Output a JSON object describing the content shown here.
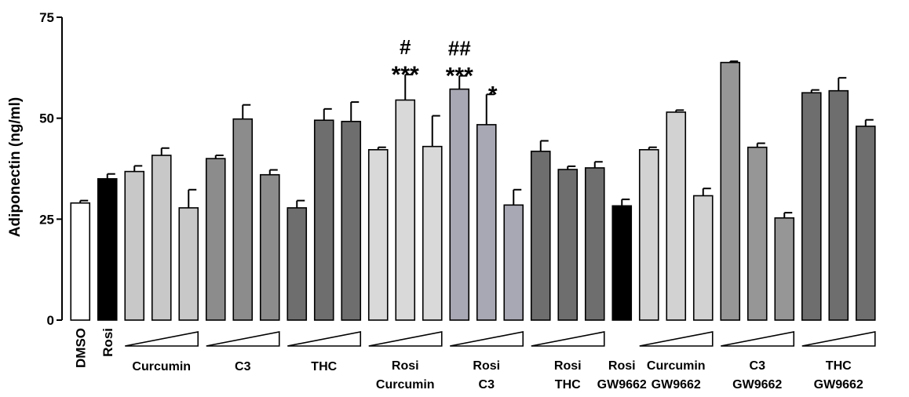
{
  "chart_data": {
    "type": "bar",
    "ylabel": "Adiponectin (ng/ml)",
    "xlabel": "",
    "title": "",
    "ylim": [
      0,
      75
    ],
    "yticks": [
      0,
      25,
      50,
      75
    ],
    "grid": false,
    "bars": [
      {
        "value": 29.0,
        "error": 0.6,
        "color": "#ffffff"
      },
      {
        "value": 35.0,
        "error": 1.2,
        "color": "#000000"
      },
      {
        "value": 36.8,
        "error": 1.4,
        "color": "#c8c8c8"
      },
      {
        "value": 40.8,
        "error": 1.8,
        "color": "#c8c8c8"
      },
      {
        "value": 27.8,
        "error": 4.5,
        "color": "#c8c8c8"
      },
      {
        "value": 40.0,
        "error": 0.8,
        "color": "#8c8c8c"
      },
      {
        "value": 49.8,
        "error": 3.5,
        "color": "#8c8c8c"
      },
      {
        "value": 36.0,
        "error": 1.2,
        "color": "#8c8c8c"
      },
      {
        "value": 27.8,
        "error": 1.8,
        "color": "#6e6e6e"
      },
      {
        "value": 49.5,
        "error": 2.8,
        "color": "#6e6e6e"
      },
      {
        "value": 49.2,
        "error": 4.8,
        "color": "#6e6e6e"
      },
      {
        "value": 42.2,
        "error": 0.6,
        "color": "#d9d9d9"
      },
      {
        "value": 54.5,
        "error": 6.3,
        "color": "#d9d9d9"
      },
      {
        "value": 43.0,
        "error": 7.6,
        "color": "#d9d9d9"
      },
      {
        "value": 57.2,
        "error": 3.3,
        "color": "#a8a8b4"
      },
      {
        "value": 48.4,
        "error": 7.5,
        "color": "#a8a8b4"
      },
      {
        "value": 28.5,
        "error": 3.8,
        "color": "#a8a8b4"
      },
      {
        "value": 41.8,
        "error": 2.6,
        "color": "#6e6e6e"
      },
      {
        "value": 37.3,
        "error": 0.8,
        "color": "#6e6e6e"
      },
      {
        "value": 37.7,
        "error": 1.5,
        "color": "#6e6e6e"
      },
      {
        "value": 28.3,
        "error": 1.6,
        "color": "#000000"
      },
      {
        "value": 42.2,
        "error": 0.6,
        "color": "#d2d2d2"
      },
      {
        "value": 51.5,
        "error": 0.5,
        "color": "#d2d2d2"
      },
      {
        "value": 30.8,
        "error": 1.8,
        "color": "#d2d2d2"
      },
      {
        "value": 63.8,
        "error": 0.3,
        "color": "#969696"
      },
      {
        "value": 42.8,
        "error": 1.0,
        "color": "#969696"
      },
      {
        "value": 25.3,
        "error": 1.3,
        "color": "#969696"
      },
      {
        "value": 56.3,
        "error": 0.7,
        "color": "#6e6e6e"
      },
      {
        "value": 56.8,
        "error": 3.2,
        "color": "#6e6e6e"
      },
      {
        "value": 48.0,
        "error": 1.6,
        "color": "#6e6e6e"
      }
    ],
    "annotations": [
      {
        "bar": 12,
        "lines": [
          "#",
          "***"
        ]
      },
      {
        "bar": 14,
        "lines": [
          "##",
          "***"
        ]
      },
      {
        "bar": 15,
        "lines": [
          "*"
        ]
      }
    ],
    "groups": [
      {
        "bars": [
          0
        ],
        "label_lines": [
          "DMSO"
        ],
        "rotated": true,
        "wedge": false
      },
      {
        "bars": [
          1
        ],
        "label_lines": [
          "Rosi"
        ],
        "rotated": true,
        "wedge": false
      },
      {
        "bars": [
          2,
          3,
          4
        ],
        "label_lines": [
          "Curcumin"
        ],
        "rotated": false,
        "wedge": true
      },
      {
        "bars": [
          5,
          6,
          7
        ],
        "label_lines": [
          "C3"
        ],
        "rotated": false,
        "wedge": true
      },
      {
        "bars": [
          8,
          9,
          10
        ],
        "label_lines": [
          "THC"
        ],
        "rotated": false,
        "wedge": true
      },
      {
        "bars": [
          11,
          12,
          13
        ],
        "label_lines": [
          "Rosi",
          "Curcumin"
        ],
        "rotated": false,
        "wedge": true
      },
      {
        "bars": [
          14,
          15,
          16
        ],
        "label_lines": [
          "Rosi",
          "C3"
        ],
        "rotated": false,
        "wedge": true
      },
      {
        "bars": [
          17,
          18,
          19
        ],
        "label_lines": [
          "Rosi",
          "THC"
        ],
        "rotated": false,
        "wedge": true
      },
      {
        "bars": [
          20
        ],
        "label_lines": [
          "Rosi",
          "GW9662"
        ],
        "rotated": false,
        "wedge": false
      },
      {
        "bars": [
          21,
          22,
          23
        ],
        "label_lines": [
          "Curcumin",
          "GW9662"
        ],
        "rotated": false,
        "wedge": true
      },
      {
        "bars": [
          24,
          25,
          26
        ],
        "label_lines": [
          "C3",
          "GW9662"
        ],
        "rotated": false,
        "wedge": true
      },
      {
        "bars": [
          27,
          28,
          29
        ],
        "label_lines": [
          "THC",
          "GW9662"
        ],
        "rotated": false,
        "wedge": true
      }
    ]
  }
}
